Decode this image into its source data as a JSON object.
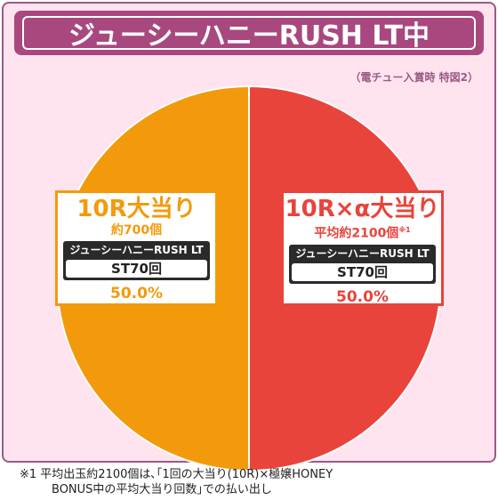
{
  "header": {
    "title": "ジューシーハニーRUSH LT中",
    "note": "（電チュー入賞時 特図2）"
  },
  "colors": {
    "left_slice": "#f39a0c",
    "right_slice": "#e8443b",
    "frame": "#9b5a86",
    "title_bg": "#a8487f",
    "background": "#ffe3ee"
  },
  "chart_data": {
    "type": "pie",
    "slices": [
      {
        "label": "10R×α大当り",
        "value": 50.0,
        "color": "#e8443b"
      },
      {
        "label": "10R大当り",
        "value": 50.0,
        "color": "#f39a0c"
      }
    ]
  },
  "left_box": {
    "title": "10R大当り",
    "sub": "約700個",
    "band_label": "ジューシーハニーRUSH LT",
    "st_label": "ST70回",
    "percent": "50.0%"
  },
  "right_box": {
    "title": "10R×α大当り",
    "sub": "平均約2100個",
    "sub_mark": "※1",
    "band_label": "ジューシーハニーRUSH LT",
    "st_label": "ST70回",
    "percent": "50.0%"
  },
  "footnote": {
    "line1": "※1 平均出玉約2100個は､｢1回の大当り(10R)×極嬢HONEY",
    "line2": "BONUS中の平均大当り回数｣での払い出し"
  }
}
